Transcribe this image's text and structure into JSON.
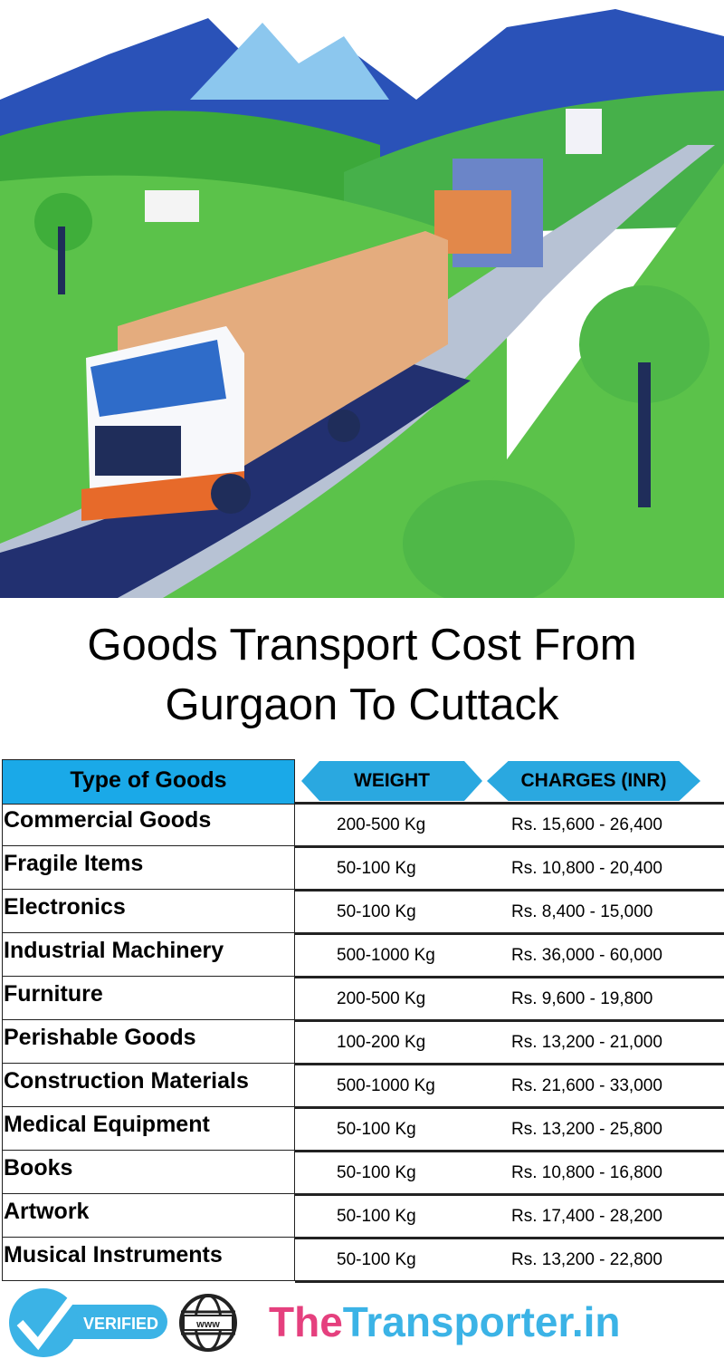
{
  "title": {
    "line1": "Goods Transport Cost From",
    "line2": "Gurgaon To Cuttack"
  },
  "table": {
    "headers": {
      "type": "Type of Goods",
      "weight": "WEIGHT",
      "charges": "CHARGES (INR)"
    },
    "rows": [
      {
        "goods": "Commercial Goods",
        "weight": "200-500 Kg",
        "charges": "Rs. 15,600 - 26,400"
      },
      {
        "goods": "Fragile Items",
        "weight": "50-100 Kg",
        "charges": "Rs. 10,800 - 20,400"
      },
      {
        "goods": "Electronics",
        "weight": "50-100 Kg",
        "charges": "Rs. 8,400 - 15,000"
      },
      {
        "goods": "Industrial Machinery",
        "weight": "500-1000 Kg",
        "charges": "Rs. 36,000 - 60,000"
      },
      {
        "goods": "Furniture",
        "weight": "200-500 Kg",
        "charges": "Rs. 9,600 - 19,800"
      },
      {
        "goods": "Perishable Goods",
        "weight": "100-200 Kg",
        "charges": "Rs. 13,200 - 21,000"
      },
      {
        "goods": "Construction Materials",
        "weight": "500-1000 Kg",
        "charges": "Rs. 21,600 - 33,000"
      },
      {
        "goods": "Medical Equipment",
        "weight": "50-100 Kg",
        "charges": "Rs. 13,200 - 25,800"
      },
      {
        "goods": "Books",
        "weight": "50-100 Kg",
        "charges": "Rs. 10,800 - 16,800"
      },
      {
        "goods": "Artwork",
        "weight": "50-100 Kg",
        "charges": "Rs. 17,400 - 28,200"
      },
      {
        "goods": "Musical Instruments",
        "weight": "50-100 Kg",
        "charges": "Rs. 13,200 - 22,800"
      }
    ]
  },
  "footer": {
    "verified_label": "VERIFIED",
    "www_label": "www",
    "brand_part1": "The",
    "brand_part2": "Transporter.in"
  },
  "colors": {
    "header_blue": "#1aa9e8",
    "brand_pink": "#e5407e",
    "brand_blue": "#3bb3e6"
  }
}
